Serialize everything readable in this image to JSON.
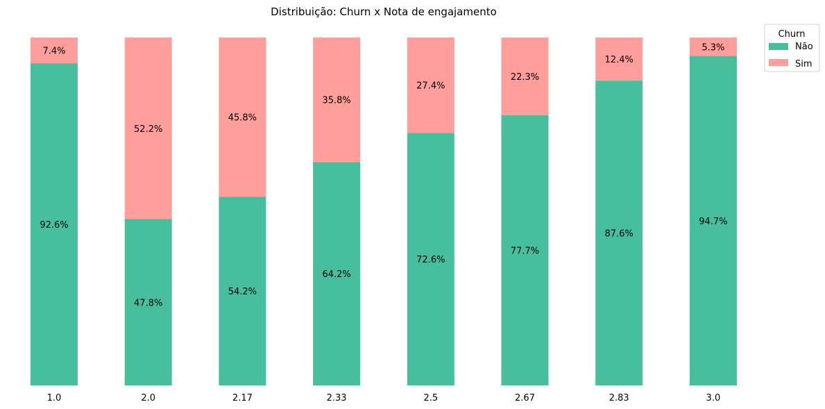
{
  "chart_data": {
    "type": "bar",
    "stacked": true,
    "title": "Distribuição: Churn x Nota de engajamento",
    "xlabel": "",
    "ylabel": "",
    "ylim": [
      0,
      100
    ],
    "grid": false,
    "legend": {
      "title": "Churn",
      "placement": "top-right-outside"
    },
    "categories": [
      "1.0",
      "2.0",
      "2.17",
      "2.33",
      "2.5",
      "2.67",
      "2.83",
      "3.0"
    ],
    "series": [
      {
        "name": "Não",
        "color": "#48bf9c",
        "values": [
          92.6,
          47.8,
          54.2,
          64.2,
          72.6,
          77.7,
          87.6,
          94.7
        ],
        "labels": [
          "92.6%",
          "47.8%",
          "54.2%",
          "64.2%",
          "72.6%",
          "77.7%",
          "87.6%",
          "94.7%"
        ]
      },
      {
        "name": "Sim",
        "color": "#ff9e9a",
        "values": [
          7.4,
          52.2,
          45.8,
          35.8,
          27.4,
          22.3,
          12.4,
          5.3
        ],
        "labels": [
          "7.4%",
          "52.2%",
          "45.8%",
          "35.8%",
          "27.4%",
          "22.3%",
          "12.4%",
          "5.3%"
        ]
      }
    ]
  }
}
